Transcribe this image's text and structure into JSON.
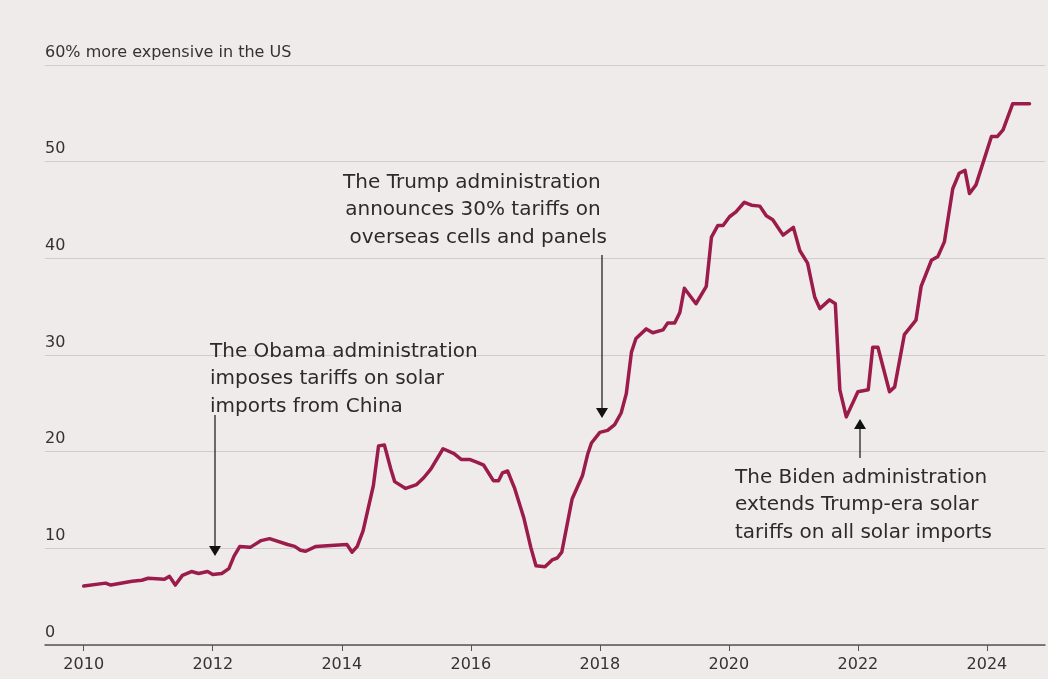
{
  "chart_data": {
    "type": "line",
    "color": "#9b1c4b",
    "xlim": [
      2009.4,
      2024.9
    ],
    "xticks": [
      2010,
      2012,
      2014,
      2016,
      2018,
      2020,
      2022,
      2024
    ],
    "ylim": [
      0,
      60
    ],
    "yticks": [
      0,
      10,
      20,
      30,
      40,
      50,
      {
        "value": 60,
        "label": "60% more expensive in the US"
      }
    ],
    "grid": "y",
    "marker": "none",
    "line_style": "solid",
    "x": [
      2010.0,
      2010.34,
      2010.42,
      2010.75,
      2010.9,
      2011.0,
      2011.25,
      2011.33,
      2011.42,
      2011.53,
      2011.67,
      2011.78,
      2011.92,
      2012.0,
      2012.14,
      2012.25,
      2012.33,
      2012.42,
      2012.58,
      2012.75,
      2012.88,
      2013.16,
      2013.27,
      2013.36,
      2013.44,
      2013.6,
      2013.83,
      2014.08,
      2014.16,
      2014.24,
      2014.33,
      2014.49,
      2014.57,
      2014.66,
      2014.76,
      2014.82,
      2014.99,
      2015.16,
      2015.27,
      2015.38,
      2015.57,
      2015.74,
      2015.85,
      2015.98,
      2016.1,
      2016.2,
      2016.35,
      2016.43,
      2016.49,
      2016.57,
      2016.68,
      2016.82,
      2016.93,
      2017.01,
      2017.15,
      2017.26,
      2017.34,
      2017.41,
      2017.57,
      2017.73,
      2017.81,
      2017.87,
      2018.0,
      2018.12,
      2018.23,
      2018.33,
      2018.41,
      2018.49,
      2018.56,
      2018.72,
      2018.82,
      2018.98,
      2019.05,
      2019.16,
      2019.24,
      2019.31,
      2019.49,
      2019.65,
      2019.73,
      2019.83,
      2019.91,
      2020.01,
      2020.11,
      2020.24,
      2020.35,
      2020.48,
      2020.58,
      2020.68,
      2020.84,
      2021.0,
      2021.1,
      2021.22,
      2021.33,
      2021.41,
      2021.56,
      2021.65,
      2021.72,
      2021.82,
      2022.0,
      2022.16,
      2022.23,
      2022.31,
      2022.49,
      2022.57,
      2022.72,
      2022.9,
      2022.98,
      2023.14,
      2023.24,
      2023.34,
      2023.47,
      2023.57,
      2023.66,
      2023.73,
      2023.83,
      2024.07,
      2024.16,
      2024.25,
      2024.4,
      2024.66
    ],
    "values": [
      6.1,
      6.4,
      6.2,
      6.6,
      6.7,
      6.9,
      6.8,
      7.1,
      6.2,
      7.2,
      7.6,
      7.4,
      7.6,
      7.3,
      7.4,
      7.9,
      9.2,
      10.2,
      10.1,
      10.8,
      11.0,
      10.4,
      10.2,
      9.8,
      9.7,
      10.2,
      10.3,
      10.4,
      9.6,
      10.2,
      11.8,
      16.5,
      20.6,
      20.7,
      18.2,
      16.9,
      16.2,
      16.6,
      17.3,
      18.2,
      20.3,
      19.8,
      19.2,
      19.2,
      18.9,
      18.6,
      17.0,
      17.0,
      17.8,
      18.0,
      16.2,
      13.2,
      10.1,
      8.2,
      8.1,
      8.8,
      9.0,
      9.6,
      15.1,
      17.5,
      19.7,
      20.9,
      22.0,
      22.2,
      22.8,
      24.0,
      26.0,
      30.3,
      31.7,
      32.7,
      32.3,
      32.6,
      33.3,
      33.3,
      34.4,
      36.9,
      35.3,
      37.1,
      42.2,
      43.4,
      43.4,
      44.3,
      44.8,
      45.8,
      45.5,
      45.4,
      44.4,
      44.0,
      42.4,
      43.2,
      40.8,
      39.5,
      36.0,
      34.8,
      35.7,
      35.3,
      26.4,
      23.6,
      26.2,
      26.4,
      30.8,
      30.8,
      26.2,
      26.7,
      32.1,
      33.6,
      37.1,
      39.8,
      40.2,
      41.7,
      47.2,
      48.8,
      49.1,
      46.7,
      47.6,
      52.6,
      52.6,
      53.3,
      56.0,
      56.0
    ],
    "annotations": [
      "The Obama administration imposes tariffs on solar imports from China",
      "The Trump administration announces 30% tariffs on overseas cells and panels",
      "The Biden administration extends Trump-era solar tariffs on all solar imports"
    ]
  }
}
